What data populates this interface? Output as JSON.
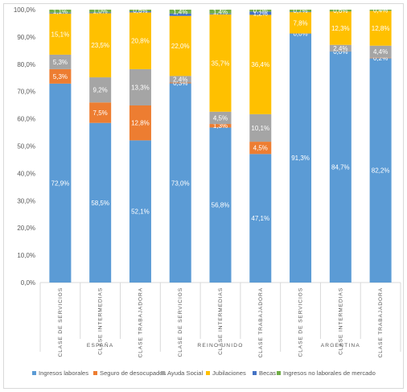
{
  "chart_data": {
    "type": "bar",
    "stacked": true,
    "percent": true,
    "title": "",
    "xlabel": "",
    "ylabel": "",
    "ylim": [
      0,
      100
    ],
    "yticks": [
      "0,0%",
      "10,0%",
      "20,0%",
      "30,0%",
      "40,0%",
      "50,0%",
      "60,0%",
      "70,0%",
      "80,0%",
      "90,0%",
      "100,0%"
    ],
    "grid": false,
    "legend_position": "bottom",
    "groups": [
      {
        "name": "ESPAÑA",
        "categories": [
          "CLASE DE SERVICIOS",
          "CLASE INTERMEDIAS",
          "CLASE TRABAJADORA"
        ]
      },
      {
        "name": "REINO UNIDO",
        "categories": [
          "CLASE DE SERVICIOS",
          "CLASE INTERMEDIAS",
          "CLASE TRABAJADORA"
        ]
      },
      {
        "name": "ARGENTINA",
        "categories": [
          "CLASE DE SERVICIOS",
          "CLASE INTERMEDIAS",
          "CLASE TRABAJADORA"
        ]
      }
    ],
    "series": [
      {
        "name": "Ingresos laborales",
        "color": "#5b9bd5",
        "values": [
          72.9,
          58.5,
          52.1,
          73.0,
          56.8,
          47.1,
          91.3,
          84.7,
          82.2
        ],
        "labels": [
          "72,9%",
          "58,5%",
          "52,1%",
          "73,0%",
          "56,8%",
          "47,1%",
          "91,3%",
          "84,7%",
          "82,2%"
        ]
      },
      {
        "name": "Seguro de desocupados",
        "color": "#ed7d31",
        "values": [
          5.3,
          7.5,
          12.8,
          0.3,
          1.3,
          4.5,
          0.0,
          0.0,
          0.2
        ],
        "labels": [
          "5,3%",
          "7,5%",
          "12,8%",
          "0,3%",
          "1,3%",
          "4,5%",
          "0,0%",
          "0,0%",
          "0,2%"
        ]
      },
      {
        "name": "Ayuda Social",
        "color": "#a5a5a5",
        "values": [
          5.3,
          9.2,
          13.3,
          2.4,
          4.5,
          10.1,
          0.0,
          2.4,
          4.4
        ],
        "labels": [
          "5,3%",
          "9,2%",
          "13,3%",
          "2,4%",
          "4,5%",
          "10,1%",
          "",
          "2,4%",
          "4,4%"
        ]
      },
      {
        "name": "Jubilaciones",
        "color": "#ffc000",
        "values": [
          15.1,
          23.5,
          20.8,
          22.0,
          35.7,
          36.4,
          7.8,
          12.3,
          12.8
        ],
        "labels": [
          "15,1%",
          "23,5%",
          "20,8%",
          "22,0%",
          "35,7%",
          "36,4%",
          "7,8%",
          "12,3%",
          "12,8%"
        ]
      },
      {
        "name": "Becas",
        "color": "#4472c4",
        "values": [
          0.3,
          0.3,
          0.4,
          0.9,
          0.3,
          1.2,
          0.2,
          0.0,
          0.0
        ],
        "labels": [
          "",
          "",
          "",
          "",
          "",
          "1,2%",
          "",
          "",
          ""
        ]
      },
      {
        "name": "Ingresos no laborales de mercado",
        "color": "#70ad47",
        "values": [
          1.1,
          1.0,
          0.6,
          1.4,
          1.4,
          0.7,
          0.7,
          0.6,
          0.4
        ],
        "labels": [
          "1,1%",
          "1,0%",
          "0,6%",
          "1,4%",
          "1,4%",
          "0,7%",
          "0,7%",
          "0,6%",
          "0,4%"
        ]
      }
    ]
  }
}
